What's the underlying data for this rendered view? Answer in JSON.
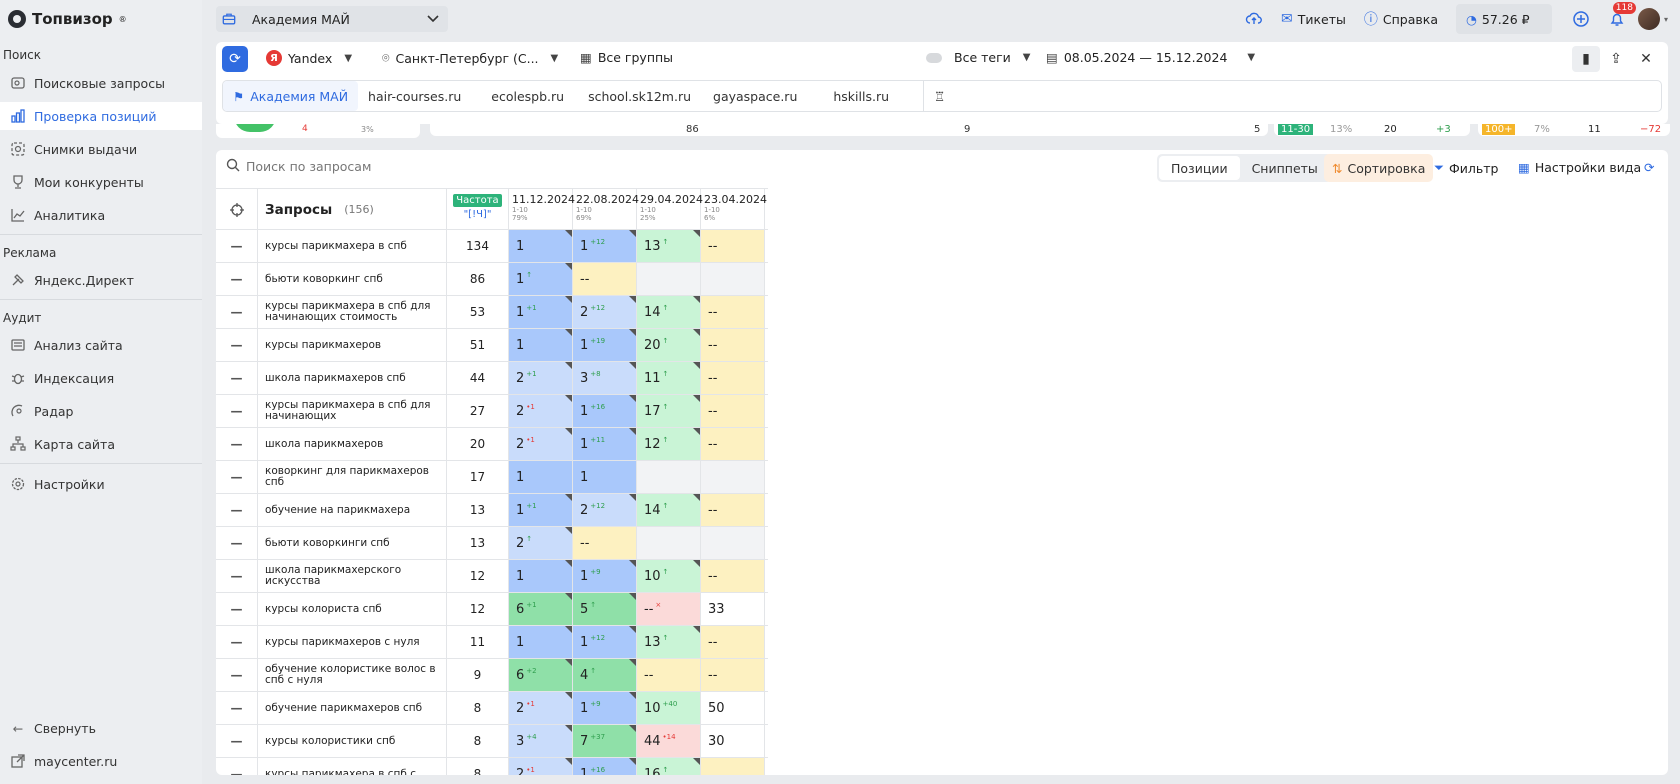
{
  "sidebar": {
    "logo": "Топвизор",
    "logo_reg": "®",
    "sections": [
      {
        "title": "Поиск"
      },
      {
        "title": "Реклама"
      },
      {
        "title": "Аудит"
      }
    ],
    "items": [
      {
        "label": "Поисковые запросы",
        "icon": "search-list-icon"
      },
      {
        "label": "Проверка позиций",
        "icon": "bar-chart-icon"
      },
      {
        "label": "Снимки выдачи",
        "icon": "snapshot-icon"
      },
      {
        "label": "Мои конкуренты",
        "icon": "trophy-icon"
      },
      {
        "label": "Аналитика",
        "icon": "analytics-icon"
      },
      {
        "label": "Яндекс.Директ",
        "icon": "hammer-icon"
      },
      {
        "label": "Анализ сайта",
        "icon": "site-audit-icon"
      },
      {
        "label": "Индексация",
        "icon": "bug-icon"
      },
      {
        "label": "Радар",
        "icon": "radar-icon"
      },
      {
        "label": "Карта сайта",
        "icon": "sitemap-icon"
      },
      {
        "label": "Настройки",
        "icon": "gear-icon"
      }
    ],
    "collapse": "Свернуть",
    "site_link": "maycenter.ru"
  },
  "topbar": {
    "project": "Академия МАЙ",
    "tickets": "Тикеты",
    "help": "Справка",
    "balance": "57.26 ₽",
    "notifications": "118"
  },
  "filters": {
    "engine": "Yandex",
    "region": "Санкт-Петербург (С...",
    "groups": "Все группы",
    "tags": "Все теги",
    "dates": "08.05.2024 — 15.12.2024"
  },
  "site_tabs": [
    "Академия МАЙ",
    "hair-courses.ru",
    "ecolespb.ru",
    "school.sk12m.ru",
    "gayaspace.ru",
    "hskills.ru"
  ],
  "peek": {
    "left_a": "4",
    "left_b": "3%",
    "mid_a": "86",
    "mid_b": "9",
    "mid_c": "5",
    "r1_badge": "11-30",
    "r1_pct": "13%",
    "r1_val": "20",
    "r1_delta": "+3",
    "r2_badge": "100+",
    "r2_pct": "7%",
    "r2_val": "11",
    "r2_delta": "−72"
  },
  "toolbar": {
    "search_placeholder": "Поиск по запросам",
    "positions": "Позиции",
    "snippets": "Сниппеты",
    "sort": "Сортировка",
    "filter": "Фильтр",
    "view": "Настройки вида"
  },
  "table": {
    "queries_title": "Запросы",
    "queries_count": "(156)",
    "freq_badge": "Частота",
    "freq_sub": "\"[!Ч]\"",
    "dates": [
      {
        "date": "11.12.2024",
        "range": "1-10",
        "pct": "79%"
      },
      {
        "date": "22.08.2024",
        "range": "1-10",
        "pct": "69%"
      },
      {
        "date": "29.04.2024",
        "range": "1-10",
        "pct": "25%"
      },
      {
        "date": "23.04.2024",
        "range": "1-10",
        "pct": "6%"
      }
    ],
    "rows": [
      {
        "q": "курсы парикмахера в спб",
        "f": "134",
        "p": [
          [
            "1",
            "",
            "",
            "blue",
            1
          ],
          [
            "1",
            "+12",
            "up",
            "blue",
            1
          ],
          [
            "13",
            "↑",
            "up",
            "lgreen",
            1
          ],
          [
            "--",
            "",
            "",
            "yellow",
            0
          ]
        ]
      },
      {
        "q": "бьюти коворкинг спб",
        "f": "86",
        "p": [
          [
            "1",
            "↑",
            "up",
            "blue",
            1
          ],
          [
            "--",
            "",
            "",
            "yellow",
            0
          ],
          [
            "",
            "",
            "",
            "gray",
            0
          ],
          [
            "",
            "",
            "",
            "gray",
            0
          ]
        ]
      },
      {
        "q": "курсы парикмахера в спб для начинающих стоимость",
        "f": "53",
        "p": [
          [
            "1",
            "+1",
            "up",
            "blue",
            1
          ],
          [
            "2",
            "+12",
            "up",
            "lblue",
            1
          ],
          [
            "14",
            "↑",
            "up",
            "lgreen",
            1
          ],
          [
            "--",
            "",
            "",
            "yellow",
            0
          ]
        ]
      },
      {
        "q": "курсы парикмахеров",
        "f": "51",
        "p": [
          [
            "1",
            "",
            "",
            "blue",
            1
          ],
          [
            "1",
            "+19",
            "up",
            "blue",
            1
          ],
          [
            "20",
            "↑",
            "up",
            "lgreen",
            1
          ],
          [
            "--",
            "",
            "",
            "yellow",
            0
          ]
        ]
      },
      {
        "q": "школа парикмахеров спб",
        "f": "44",
        "p": [
          [
            "2",
            "+1",
            "up",
            "lblue",
            1
          ],
          [
            "3",
            "+8",
            "up",
            "lblue",
            1
          ],
          [
            "11",
            "↑",
            "up",
            "lgreen",
            1
          ],
          [
            "--",
            "",
            "",
            "yellow",
            0
          ]
        ]
      },
      {
        "q": "курсы парикмахера в спб для начинающих",
        "f": "27",
        "p": [
          [
            "2",
            "•1",
            "dn",
            "lblue",
            1
          ],
          [
            "1",
            "+16",
            "up",
            "blue",
            1
          ],
          [
            "17",
            "↑",
            "up",
            "lgreen",
            1
          ],
          [
            "--",
            "",
            "",
            "yellow",
            0
          ]
        ]
      },
      {
        "q": "школа парикмахеров",
        "f": "20",
        "p": [
          [
            "2",
            "•1",
            "dn",
            "lblue",
            1
          ],
          [
            "1",
            "+11",
            "up",
            "blue",
            1
          ],
          [
            "12",
            "↑",
            "up",
            "lgreen",
            1
          ],
          [
            "--",
            "",
            "",
            "yellow",
            0
          ]
        ]
      },
      {
        "q": "коворкинг для парикмахеров спб",
        "f": "17",
        "p": [
          [
            "1",
            "",
            "",
            "blue",
            0
          ],
          [
            "1",
            "",
            "",
            "blue",
            0
          ],
          [
            "",
            "",
            "",
            "gray",
            0
          ],
          [
            "",
            "",
            "",
            "gray",
            0
          ]
        ]
      },
      {
        "q": "обучение на парикмахера",
        "f": "13",
        "p": [
          [
            "1",
            "+1",
            "up",
            "blue",
            1
          ],
          [
            "2",
            "+12",
            "up",
            "lblue",
            1
          ],
          [
            "14",
            "↑",
            "up",
            "lgreen",
            1
          ],
          [
            "--",
            "",
            "",
            "yellow",
            0
          ]
        ]
      },
      {
        "q": "бьюти коворкинги спб",
        "f": "13",
        "p": [
          [
            "2",
            "↑",
            "up",
            "lblue",
            1
          ],
          [
            "--",
            "",
            "",
            "yellow",
            0
          ],
          [
            "",
            "",
            "",
            "gray",
            0
          ],
          [
            "",
            "",
            "",
            "gray",
            0
          ]
        ]
      },
      {
        "q": "школа парикмахерского искусства",
        "f": "12",
        "p": [
          [
            "1",
            "",
            "",
            "blue",
            1
          ],
          [
            "1",
            "+9",
            "up",
            "blue",
            1
          ],
          [
            "10",
            "↑",
            "up",
            "lgreen",
            1
          ],
          [
            "--",
            "",
            "",
            "yellow",
            0
          ]
        ]
      },
      {
        "q": "курсы колориста спб",
        "f": "12",
        "p": [
          [
            "6",
            "+1",
            "up",
            "green",
            1
          ],
          [
            "5",
            "↑",
            "up",
            "green",
            1
          ],
          [
            "--",
            "×",
            "dn",
            "pink",
            0
          ],
          [
            "33",
            "",
            "",
            "white",
            0
          ]
        ]
      },
      {
        "q": "курсы парикмахеров с нуля",
        "f": "11",
        "p": [
          [
            "1",
            "",
            "",
            "blue",
            1
          ],
          [
            "1",
            "+12",
            "up",
            "blue",
            1
          ],
          [
            "13",
            "↑",
            "up",
            "lgreen",
            1
          ],
          [
            "--",
            "",
            "",
            "yellow",
            0
          ]
        ]
      },
      {
        "q": "обучение колористике волос в спб с нуля",
        "f": "9",
        "p": [
          [
            "6",
            "+2",
            "up",
            "green",
            1
          ],
          [
            "4",
            "↑",
            "up",
            "green",
            1
          ],
          [
            "--",
            "",
            "",
            "yellow",
            0
          ],
          [
            "--",
            "",
            "",
            "yellow",
            0
          ]
        ]
      },
      {
        "q": "обучение парикмахеров спб",
        "f": "8",
        "p": [
          [
            "2",
            "•1",
            "dn",
            "lblue",
            1
          ],
          [
            "1",
            "+9",
            "up",
            "blue",
            1
          ],
          [
            "10",
            "+40",
            "up",
            "lgreen",
            0
          ],
          [
            "50",
            "",
            "",
            "white",
            0
          ]
        ]
      },
      {
        "q": "курсы колористики спб",
        "f": "8",
        "p": [
          [
            "3",
            "+4",
            "up",
            "lblue",
            1
          ],
          [
            "7",
            "+37",
            "up",
            "green",
            1
          ],
          [
            "44",
            "•14",
            "dn",
            "pink",
            0
          ],
          [
            "30",
            "",
            "",
            "white",
            0
          ]
        ]
      },
      {
        "q": "курсы парикмахера в спб с",
        "f": "8",
        "p": [
          [
            "2",
            "•1",
            "dn",
            "lblue",
            1
          ],
          [
            "1",
            "+16",
            "up",
            "blue",
            1
          ],
          [
            "16",
            "↑",
            "up",
            "lgreen",
            1
          ],
          [
            "",
            "",
            "",
            "yellow",
            0
          ]
        ]
      }
    ]
  }
}
